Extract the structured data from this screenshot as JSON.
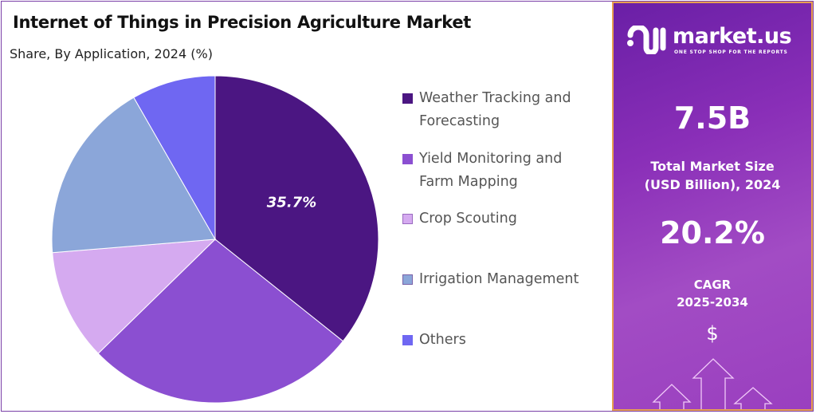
{
  "title": "Internet of Things in Precision Agriculture Market",
  "subtitle": "Share, By Application, 2024 (%)",
  "chart_data": {
    "type": "pie",
    "title": "Internet of Things in Precision Agriculture Market",
    "subtitle": "Share, By Application, 2024 (%)",
    "categories": [
      "Weather Tracking and Forecasting",
      "Yield Monitoring and Farm Mapping",
      "Crop Scouting",
      "Irrigation Management",
      "Others"
    ],
    "values": [
      35.7,
      27.0,
      11.0,
      18.0,
      8.3
    ],
    "data_labels": [
      "35.7%",
      null,
      null,
      null,
      null
    ],
    "colors": [
      "#4b1682",
      "#8b4fd1",
      "#d5aaf0",
      "#8ba6d9",
      "#6f67f2"
    ],
    "start_angle": "top, clockwise",
    "legend_position": "right"
  },
  "legend": [
    {
      "line1": "Weather Tracking and",
      "line2": "Forecasting"
    },
    {
      "line1": "Yield Monitoring and",
      "line2": "Farm Mapping"
    },
    {
      "line1": "Crop Scouting",
      "line2": ""
    },
    {
      "line1": "Irrigation Management",
      "line2": ""
    },
    {
      "line1": "Others",
      "line2": ""
    }
  ],
  "panel": {
    "brand": "market.us",
    "tagline": "ONE STOP SHOP FOR THE REPORTS",
    "market_size": "7.5B",
    "market_size_label_1": "Total Market Size",
    "market_size_label_2": "(USD Billion), 2024",
    "cagr": "20.2%",
    "cagr_label_1": "CAGR",
    "cagr_label_2": "2025-2034",
    "dollar_symbol": "$"
  }
}
